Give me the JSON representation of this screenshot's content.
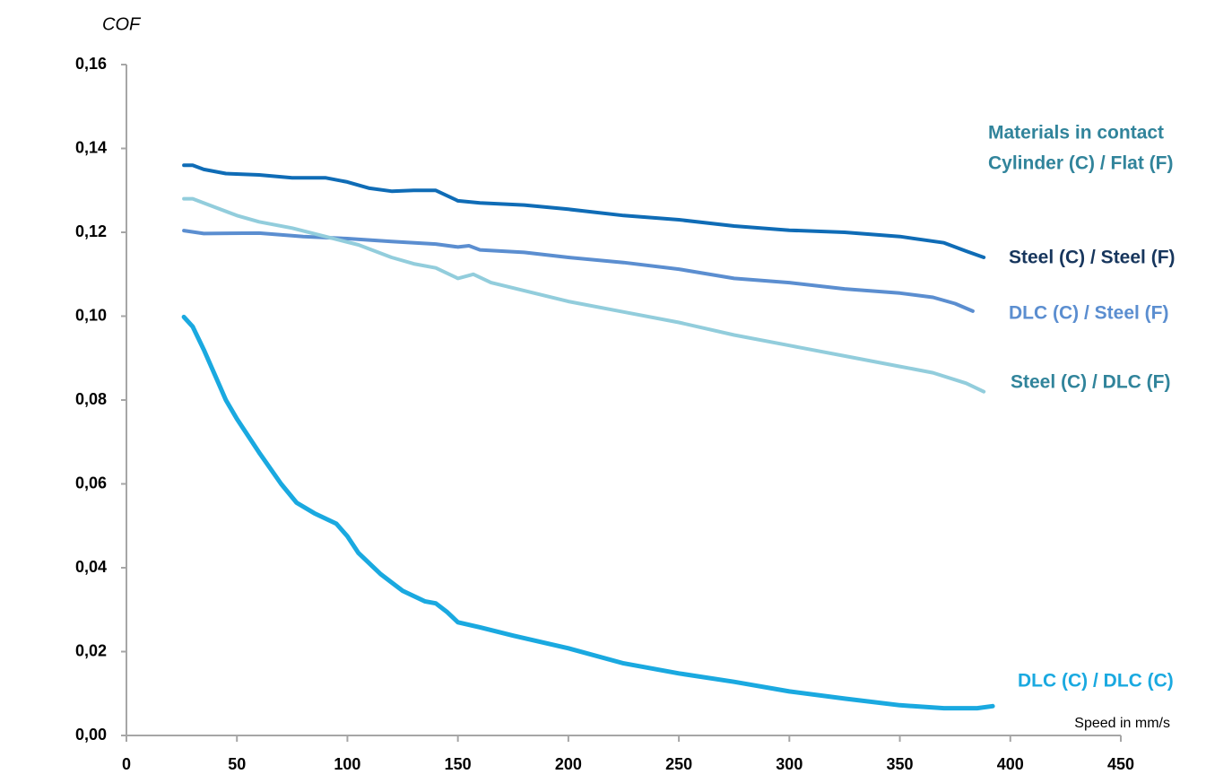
{
  "chart_data": {
    "type": "line",
    "y_label": "COF",
    "x_label": "Speed in mm/s",
    "legend_title": [
      "Materials in contact",
      "Cylinder (C) / Flat (F)"
    ],
    "xlim": [
      0,
      450
    ],
    "xticks": [
      0,
      50,
      100,
      150,
      200,
      250,
      300,
      350,
      400,
      450
    ],
    "ylim": [
      0,
      0.16
    ],
    "yticks": [
      {
        "value": 0,
        "label": "0,00"
      },
      {
        "value": 0.02,
        "label": "0,02"
      },
      {
        "value": 0.04,
        "label": "0,04"
      },
      {
        "value": 0.06,
        "label": "0,06"
      },
      {
        "value": 0.08,
        "label": "0,08"
      },
      {
        "value": 0.1,
        "label": "0,10"
      },
      {
        "value": 0.12,
        "label": "0,12"
      },
      {
        "value": 0.14,
        "label": "0,14"
      },
      {
        "value": 0.16,
        "label": "0,16"
      }
    ],
    "grid": false,
    "series": [
      {
        "name": "Steel (C) / Steel (F)",
        "color": "#0f6cb6",
        "label_color": "#17365d",
        "x": [
          26,
          30,
          35,
          45,
          60,
          75,
          90,
          100,
          110,
          120,
          130,
          140,
          150,
          160,
          180,
          200,
          225,
          250,
          275,
          300,
          325,
          350,
          370,
          380,
          388
        ],
        "values": [
          0.136,
          0.136,
          0.135,
          0.134,
          0.1337,
          0.133,
          0.133,
          0.132,
          0.1305,
          0.1298,
          0.13,
          0.13,
          0.1275,
          0.127,
          0.1265,
          0.1255,
          0.124,
          0.123,
          0.1215,
          0.1205,
          0.12,
          0.119,
          0.1175,
          0.1155,
          0.114
        ]
      },
      {
        "name": "DLC (C) / Steel (F)",
        "color": "#5b8ed0",
        "label_color": "#5b8ed0",
        "x": [
          26,
          35,
          60,
          80,
          100,
          120,
          140,
          150,
          155,
          160,
          180,
          200,
          225,
          250,
          275,
          300,
          325,
          350,
          365,
          375,
          383
        ],
        "values": [
          0.1204,
          0.1197,
          0.1198,
          0.119,
          0.1185,
          0.1178,
          0.1172,
          0.1165,
          0.1168,
          0.1158,
          0.1152,
          0.114,
          0.1128,
          0.1112,
          0.109,
          0.108,
          0.1065,
          0.1055,
          0.1045,
          0.103,
          0.1012
        ]
      },
      {
        "name": "Steel (C) / DLC (F)",
        "color": "#92cddc",
        "label_color": "#31849b",
        "x": [
          26,
          30,
          40,
          50,
          60,
          75,
          90,
          105,
          120,
          130,
          140,
          150,
          157,
          165,
          200,
          225,
          250,
          275,
          300,
          325,
          350,
          365,
          380,
          388
        ],
        "values": [
          0.128,
          0.128,
          0.126,
          0.124,
          0.1225,
          0.121,
          0.119,
          0.117,
          0.114,
          0.1125,
          0.1115,
          0.109,
          0.11,
          0.108,
          0.1035,
          0.101,
          0.0985,
          0.0955,
          0.093,
          0.0905,
          0.088,
          0.0865,
          0.084,
          0.082
        ]
      },
      {
        "name": "DLC (C) / DLC (C)",
        "color": "#1aa9e0",
        "label_color": "#1aa9e0",
        "x": [
          26,
          30,
          35,
          40,
          45,
          50,
          60,
          70,
          77,
          85,
          95,
          100,
          105,
          115,
          120,
          125,
          135,
          140,
          145,
          150,
          160,
          175,
          200,
          225,
          250,
          275,
          300,
          325,
          350,
          370,
          385,
          392
        ],
        "values": [
          0.0998,
          0.0975,
          0.092,
          0.086,
          0.08,
          0.0755,
          0.0675,
          0.06,
          0.0555,
          0.053,
          0.0505,
          0.0475,
          0.0435,
          0.0385,
          0.0365,
          0.0345,
          0.032,
          0.0315,
          0.0295,
          0.027,
          0.0258,
          0.0238,
          0.0208,
          0.0172,
          0.0148,
          0.0128,
          0.0105,
          0.0088,
          0.0072,
          0.0065,
          0.0065,
          0.007
        ]
      }
    ]
  }
}
